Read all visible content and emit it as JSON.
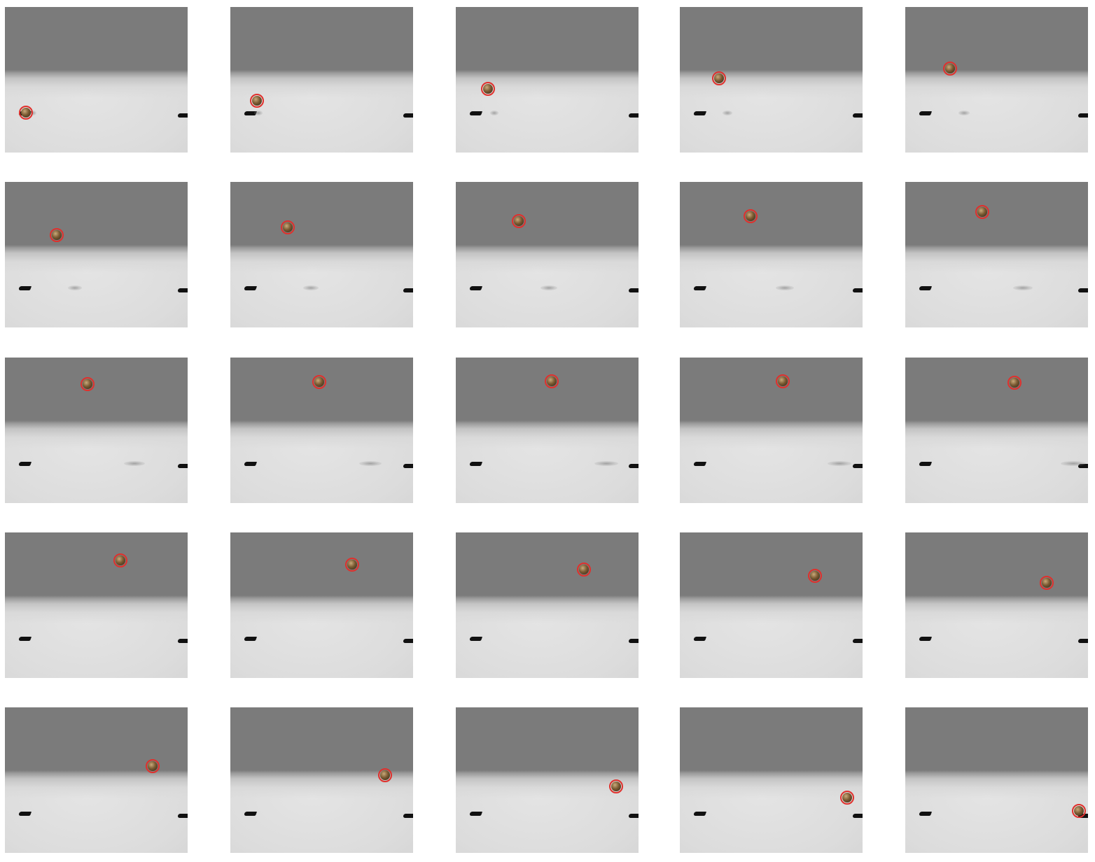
{
  "frames": [
    {
      "id": 1,
      "row": 1,
      "col": 1,
      "ball": "brown-ball",
      "marker": "red-circle"
    },
    {
      "id": 2,
      "row": 1,
      "col": 2,
      "ball": "brown-ball",
      "marker": "red-circle"
    },
    {
      "id": 3,
      "row": 1,
      "col": 3,
      "ball": "brown-ball",
      "marker": "red-circle"
    },
    {
      "id": 4,
      "row": 1,
      "col": 4,
      "ball": "brown-ball",
      "marker": "red-circle"
    },
    {
      "id": 5,
      "row": 1,
      "col": 5,
      "ball": "brown-ball",
      "marker": "red-circle"
    },
    {
      "id": 6,
      "row": 2,
      "col": 1,
      "ball": "brown-ball",
      "marker": "red-circle"
    },
    {
      "id": 7,
      "row": 2,
      "col": 2,
      "ball": "brown-ball",
      "marker": "red-circle"
    },
    {
      "id": 8,
      "row": 2,
      "col": 3,
      "ball": "brown-ball",
      "marker": "red-circle"
    },
    {
      "id": 9,
      "row": 2,
      "col": 4,
      "ball": "brown-ball",
      "marker": "red-circle"
    },
    {
      "id": 10,
      "row": 2,
      "col": 5,
      "ball": "brown-ball",
      "marker": "red-circle"
    },
    {
      "id": 11,
      "row": 3,
      "col": 1,
      "ball": "brown-ball",
      "marker": "red-circle"
    },
    {
      "id": 12,
      "row": 3,
      "col": 2,
      "ball": "brown-ball",
      "marker": "red-circle"
    },
    {
      "id": 13,
      "row": 3,
      "col": 3,
      "ball": "brown-ball",
      "marker": "red-circle"
    },
    {
      "id": 14,
      "row": 3,
      "col": 4,
      "ball": "brown-ball",
      "marker": "red-circle"
    },
    {
      "id": 15,
      "row": 3,
      "col": 5,
      "ball": "brown-ball",
      "marker": "red-circle"
    },
    {
      "id": 16,
      "row": 4,
      "col": 1,
      "ball": "brown-ball",
      "marker": "red-circle"
    },
    {
      "id": 17,
      "row": 4,
      "col": 2,
      "ball": "brown-ball",
      "marker": "red-circle"
    },
    {
      "id": 18,
      "row": 4,
      "col": 3,
      "ball": "brown-ball",
      "marker": "red-circle"
    },
    {
      "id": 19,
      "row": 4,
      "col": 4,
      "ball": "brown-ball",
      "marker": "red-circle"
    },
    {
      "id": 20,
      "row": 4,
      "col": 5,
      "ball": "brown-ball",
      "marker": "red-circle"
    },
    {
      "id": 21,
      "row": 5,
      "col": 1,
      "ball": "brown-ball",
      "marker": "red-circle"
    },
    {
      "id": 22,
      "row": 5,
      "col": 2,
      "ball": "brown-ball",
      "marker": "red-circle"
    },
    {
      "id": 23,
      "row": 5,
      "col": 3,
      "ball": "brown-ball",
      "marker": "red-circle"
    },
    {
      "id": 24,
      "row": 5,
      "col": 4,
      "ball": "brown-ball",
      "marker": "red-circle"
    },
    {
      "id": 25,
      "row": 5,
      "col": 5,
      "ball": "brown-ball",
      "marker": "red-circle"
    }
  ],
  "colors": {
    "sky": "#7b7b7b",
    "ground": "#dcdcdc",
    "marker": "#e0302c",
    "ball": "#7a5a32",
    "post": "#111111",
    "background": "#ffffff"
  }
}
